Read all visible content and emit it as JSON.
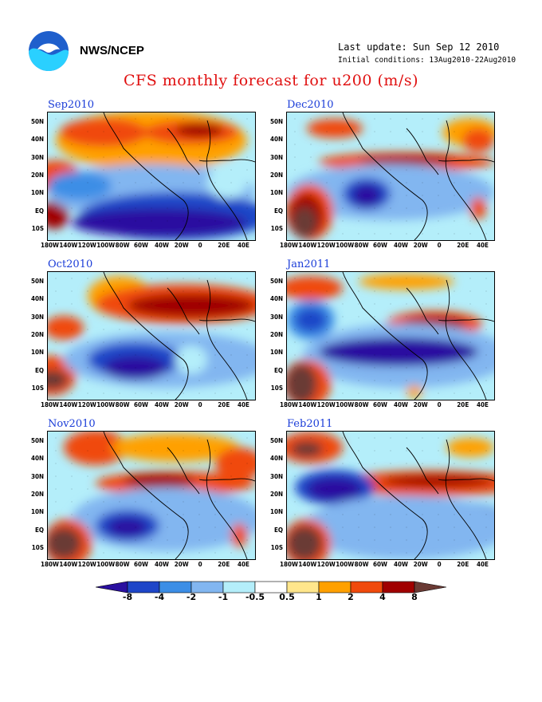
{
  "header": {
    "agency": "NWS/NCEP",
    "last_update": "Last update: Sun Sep 12 2010",
    "initial_conditions": "Initial conditions: 13Aug2010-22Aug2010",
    "title": "CFS monthly forecast for u200 (m/s)"
  },
  "axes": {
    "lat_labels": [
      "50N",
      "40N",
      "30N",
      "20N",
      "10N",
      "EQ",
      "10S"
    ],
    "lon_labels": [
      "180W",
      "140W",
      "120W",
      "100W",
      "80W",
      "60W",
      "40W",
      "20W",
      "0",
      "20E",
      "40E"
    ]
  },
  "panels": [
    {
      "id": "sep2010",
      "title": "Sep2010"
    },
    {
      "id": "dec2010",
      "title": "Dec2010"
    },
    {
      "id": "oct2010",
      "title": "Oct2010"
    },
    {
      "id": "jan2011",
      "title": "Jan2011"
    },
    {
      "id": "nov2010",
      "title": "Nov2010"
    },
    {
      "id": "feb2011",
      "title": "Feb2011"
    }
  ],
  "colorbar": {
    "levels": [
      "-8",
      "-4",
      "-2",
      "-1",
      "-0.5",
      "0.5",
      "1",
      "2",
      "4",
      "8"
    ],
    "colors": [
      "#2a10a0",
      "#1e46c8",
      "#3c8ee6",
      "#82b6f0",
      "#b4eefa",
      "#ffffff",
      "#ffe68c",
      "#ffa000",
      "#f04a0c",
      "#a00000",
      "#6a3a34"
    ]
  }
}
